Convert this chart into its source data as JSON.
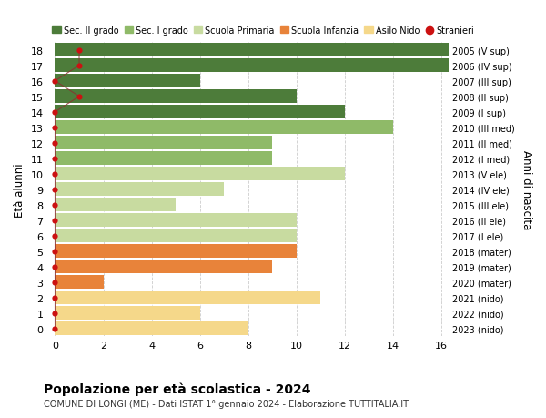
{
  "ages": [
    0,
    1,
    2,
    3,
    4,
    5,
    6,
    7,
    8,
    9,
    10,
    11,
    12,
    13,
    14,
    15,
    16,
    17,
    18
  ],
  "labels_right": [
    "2023 (nido)",
    "2022 (nido)",
    "2021 (nido)",
    "2020 (mater)",
    "2019 (mater)",
    "2018 (mater)",
    "2017 (I ele)",
    "2016 (II ele)",
    "2015 (III ele)",
    "2014 (IV ele)",
    "2013 (V ele)",
    "2012 (I med)",
    "2011 (II med)",
    "2010 (III med)",
    "2009 (I sup)",
    "2008 (II sup)",
    "2007 (III sup)",
    "2006 (IV sup)",
    "2005 (V sup)"
  ],
  "bar_values": [
    8,
    6,
    11,
    2,
    9,
    10,
    10,
    10,
    5,
    7,
    12,
    9,
    9,
    14,
    12,
    10,
    6,
    17,
    17
  ],
  "bar_colors": [
    "#f5d88a",
    "#f5d88a",
    "#f5d88a",
    "#e8833a",
    "#e8833a",
    "#e8833a",
    "#c8dba0",
    "#c8dba0",
    "#c8dba0",
    "#c8dba0",
    "#c8dba0",
    "#8fba68",
    "#8fba68",
    "#8fba68",
    "#4d7c3a",
    "#4d7c3a",
    "#4d7c3a",
    "#4d7c3a",
    "#4d7c3a"
  ],
  "stranieri_x": [
    0,
    0,
    0,
    0,
    0,
    0,
    0,
    0,
    0,
    0,
    0,
    0,
    0,
    0,
    0,
    1,
    0,
    1,
    1
  ],
  "title": "Popolazione per età scolastica - 2024",
  "subtitle": "COMUNE DI LONGI (ME) - Dati ISTAT 1° gennaio 2024 - Elaborazione TUTTITALIA.IT",
  "ylabel": "Età alunni",
  "ylabel_right": "Anni di nascita",
  "xlim_max": 16,
  "xticks": [
    0,
    2,
    4,
    6,
    8,
    10,
    12,
    14,
    16
  ],
  "legend_items": [
    {
      "label": "Sec. II grado",
      "color": "#4d7c3a",
      "type": "patch"
    },
    {
      "label": "Sec. I grado",
      "color": "#8fba68",
      "type": "patch"
    },
    {
      "label": "Scuola Primaria",
      "color": "#c8dba0",
      "type": "patch"
    },
    {
      "label": "Scuola Infanzia",
      "color": "#e8833a",
      "type": "patch"
    },
    {
      "label": "Asilo Nido",
      "color": "#f5d88a",
      "type": "patch"
    },
    {
      "label": "Stranieri",
      "color": "#cc1111",
      "type": "dot"
    }
  ],
  "background_color": "#ffffff",
  "grid_color": "#cccccc",
  "stranieri_line_color": "#8B3030",
  "stranieri_dot_color": "#cc1111"
}
